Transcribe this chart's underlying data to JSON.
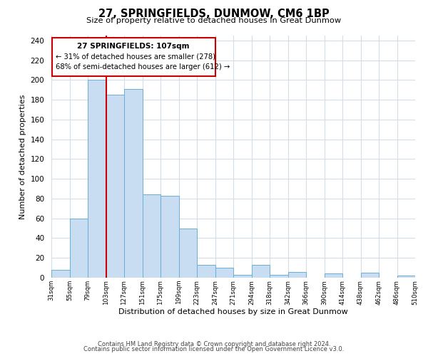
{
  "title": "27, SPRINGFIELDS, DUNMOW, CM6 1BP",
  "subtitle": "Size of property relative to detached houses in Great Dunmow",
  "xlabel": "Distribution of detached houses by size in Great Dunmow",
  "ylabel": "Number of detached properties",
  "bin_labels": [
    "31sqm",
    "55sqm",
    "79sqm",
    "103sqm",
    "127sqm",
    "151sqm",
    "175sqm",
    "199sqm",
    "223sqm",
    "247sqm",
    "271sqm",
    "294sqm",
    "318sqm",
    "342sqm",
    "366sqm",
    "390sqm",
    "414sqm",
    "438sqm",
    "462sqm",
    "486sqm",
    "510sqm"
  ],
  "bar_values": [
    8,
    60,
    200,
    185,
    191,
    84,
    83,
    50,
    13,
    10,
    3,
    13,
    3,
    6,
    0,
    4,
    0,
    5,
    0,
    2
  ],
  "bar_color": "#c9ddf2",
  "bar_edge_color": "#6baed6",
  "ylim": [
    0,
    245
  ],
  "yticks": [
    0,
    20,
    40,
    60,
    80,
    100,
    120,
    140,
    160,
    180,
    200,
    220,
    240
  ],
  "vline_x_bin": 3,
  "annotation_title": "27 SPRINGFIELDS: 107sqm",
  "annotation_line1": "← 31% of detached houses are smaller (278)",
  "annotation_line2": "68% of semi-detached houses are larger (612) →",
  "annotation_box_color": "#ffffff",
  "annotation_box_edge_color": "#cc0000",
  "vline_color": "#cc0000",
  "footer_line1": "Contains HM Land Registry data © Crown copyright and database right 2024.",
  "footer_line2": "Contains public sector information licensed under the Open Government Licence v3.0.",
  "background_color": "#ffffff",
  "grid_color": "#d4dce8",
  "fig_width": 6.0,
  "fig_height": 5.0
}
